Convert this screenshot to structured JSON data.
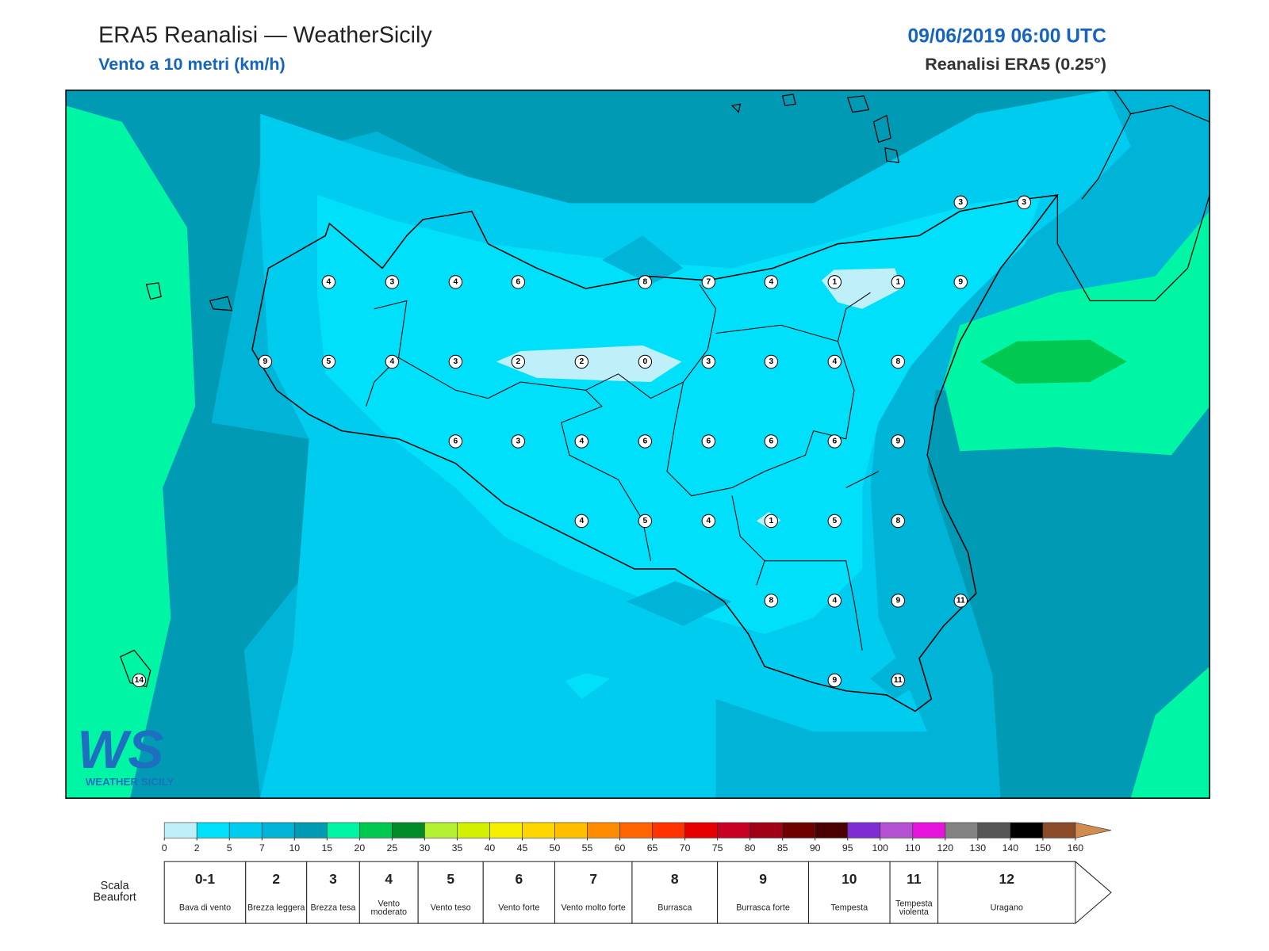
{
  "header": {
    "title": "ERA5 Reanalisi — WeatherSicily",
    "subtitle": "Vento a 10 metri (km/h)",
    "datetime": "09/06/2019 06:00 UTC",
    "source": "Reanalisi ERA5 (0.25°)"
  },
  "logo": {
    "mark": "WS",
    "name": "WEATHER SICILY"
  },
  "stations": {
    "values": [
      3,
      3,
      4,
      3,
      4,
      6,
      8,
      7,
      4,
      1,
      1,
      9,
      9,
      5,
      4,
      3,
      2,
      2,
      0,
      3,
      3,
      4,
      8,
      6,
      3,
      4,
      6,
      6,
      6,
      6,
      9,
      4,
      5,
      4,
      1,
      5,
      8,
      8,
      4,
      9,
      11,
      9,
      11,
      14
    ]
  },
  "colorbar": {
    "ticks": [
      0,
      2,
      5,
      7,
      10,
      15,
      20,
      25,
      30,
      35,
      40,
      45,
      50,
      55,
      60,
      65,
      70,
      75,
      80,
      85,
      90,
      95,
      100,
      110,
      120,
      130,
      140,
      150,
      160
    ],
    "colors": [
      "#bff0fa",
      "#00e0fa",
      "#00ccf0",
      "#00b4d8",
      "#009ab4",
      "#00f5a5",
      "#00c850",
      "#008c28",
      "#b4f032",
      "#d2f000",
      "#f5f000",
      "#ffd700",
      "#ffbe00",
      "#ff8c00",
      "#ff6400",
      "#ff3200",
      "#e60000",
      "#c80023",
      "#a00014",
      "#6e0000",
      "#4b0000",
      "#7d2dd2",
      "#b450d2",
      "#e614dc",
      "#828282",
      "#555555",
      "#000000",
      "#8c4b28",
      "#d28c50"
    ]
  },
  "beaufort": {
    "label": "Scala Beaufort",
    "levels": [
      {
        "force": "0-1",
        "desc": "Bava di vento"
      },
      {
        "force": "2",
        "desc": "Brezza leggera"
      },
      {
        "force": "3",
        "desc": "Brezza tesa"
      },
      {
        "force": "4",
        "desc": "Vento moderato"
      },
      {
        "force": "5",
        "desc": "Vento teso"
      },
      {
        "force": "6",
        "desc": "Vento forte"
      },
      {
        "force": "7",
        "desc": "Vento molto forte"
      },
      {
        "force": "8",
        "desc": "Burrasca"
      },
      {
        "force": "9",
        "desc": "Burrasca forte"
      },
      {
        "force": "10",
        "desc": "Tempesta"
      },
      {
        "force": "11",
        "desc": "Tempesta violenta"
      },
      {
        "force": "12",
        "desc": "Uragano"
      }
    ]
  }
}
